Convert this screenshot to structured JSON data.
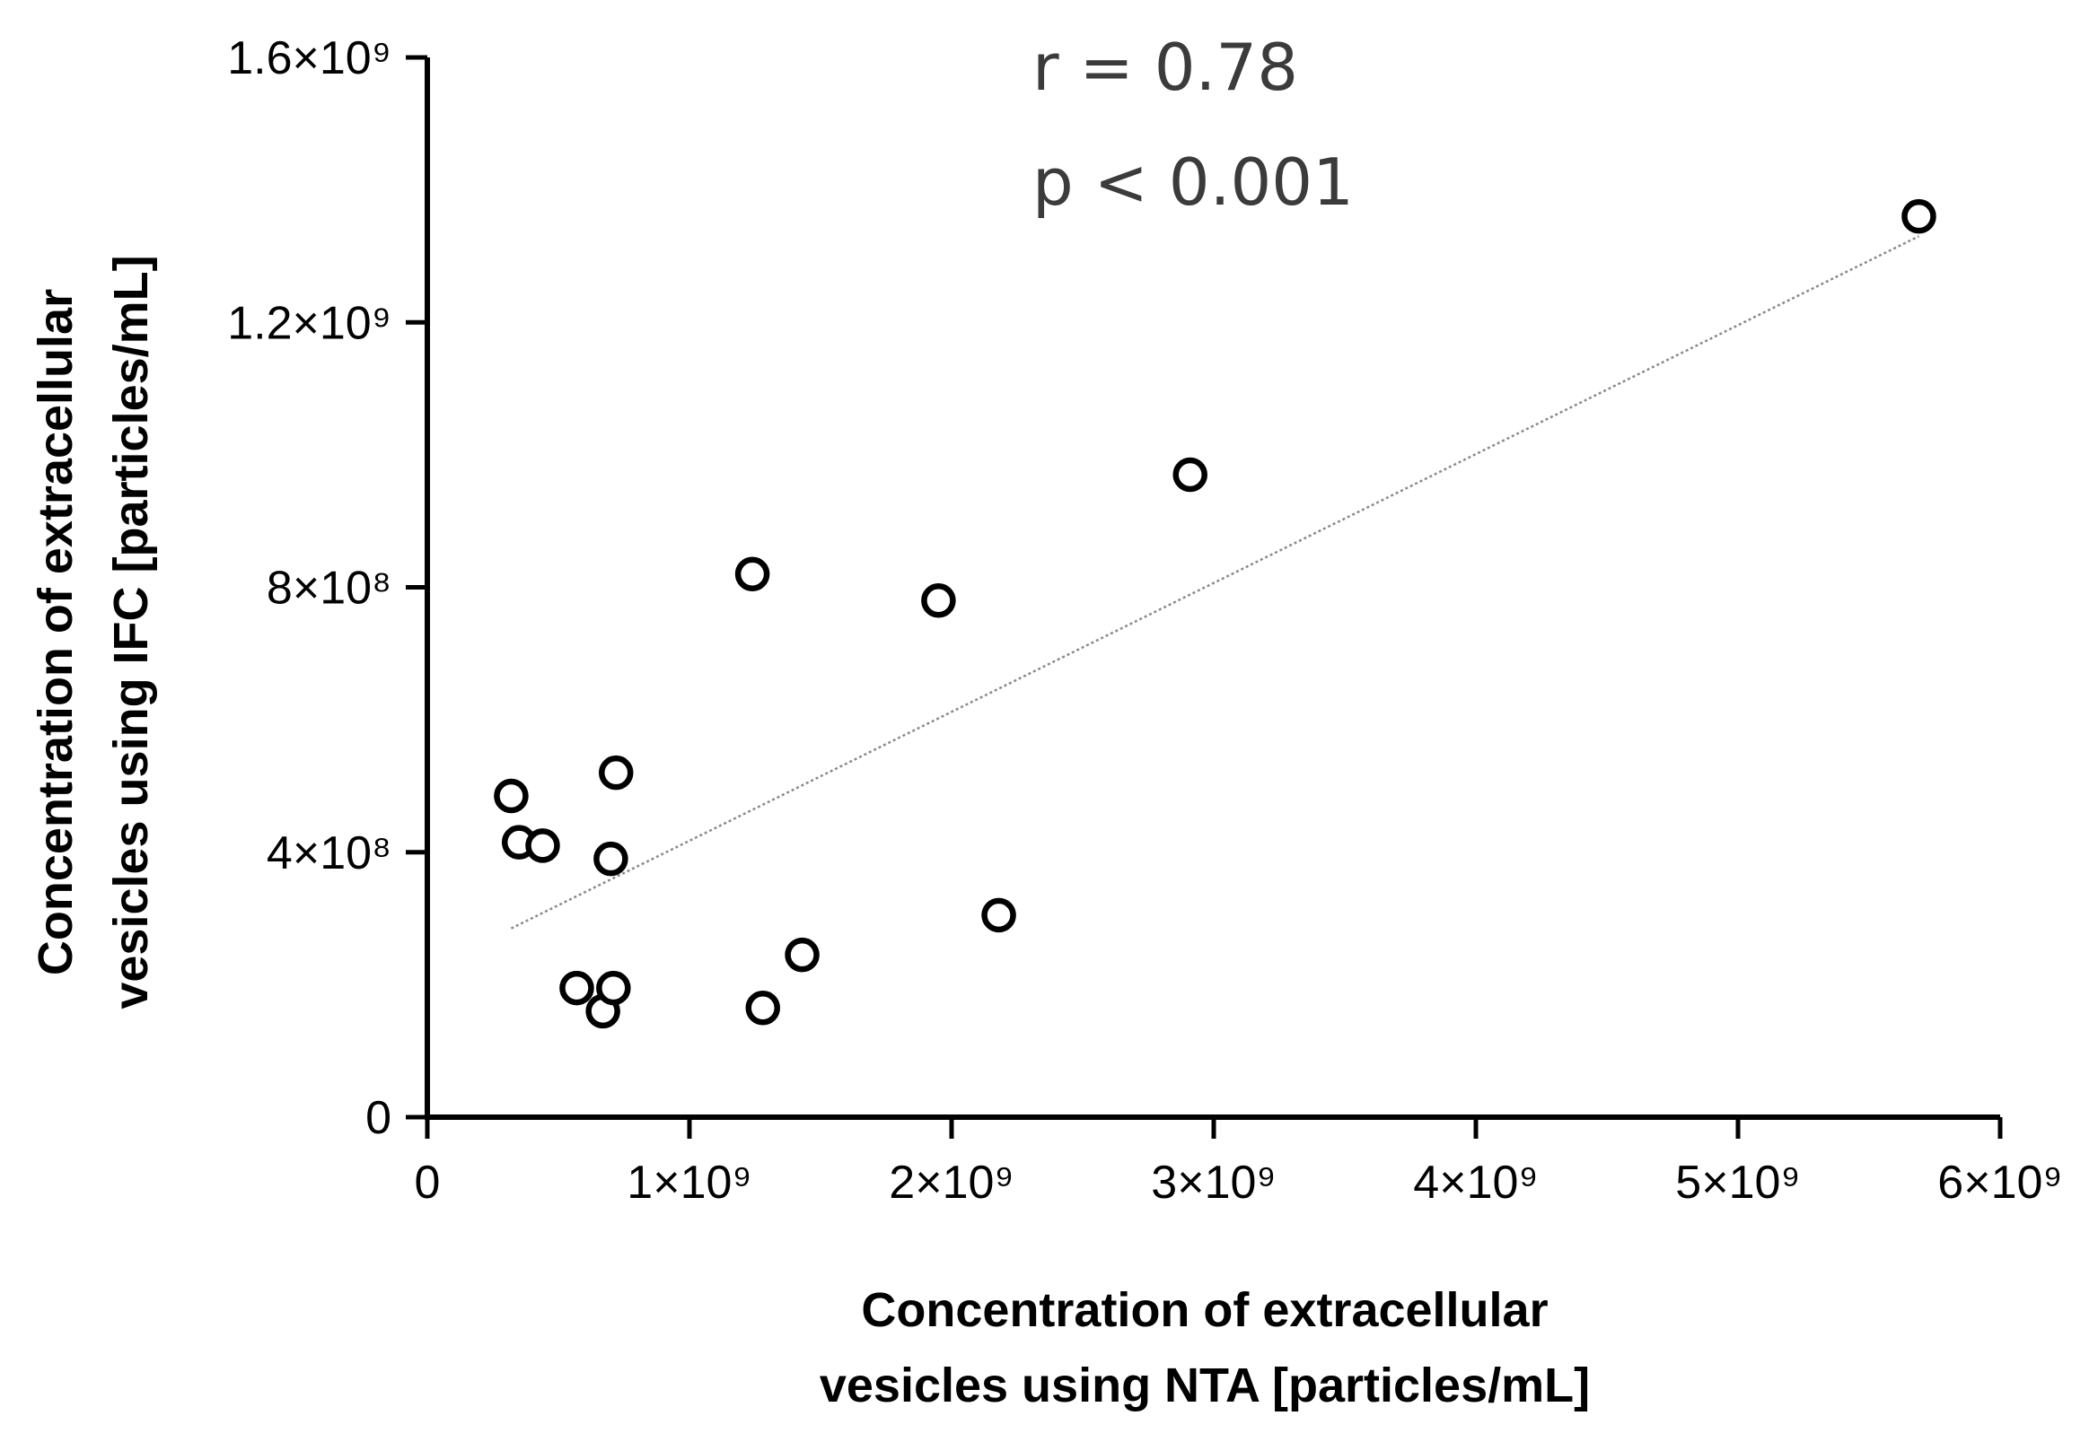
{
  "chart_data": {
    "type": "scatter",
    "title": "",
    "xlabel": "Concentration of extracellular vesicles using NTA [particles/mL]",
    "xlabel_lines": [
      "Concentration of extracellular",
      "vesicles using NTA [particles/mL]"
    ],
    "ylabel": "Concentration of extracellular vesicles using IFC [particles/mL]",
    "ylabel_lines": [
      "Concentration of extracellular",
      "vesicles using IFC [particles/mL]"
    ],
    "xlim": [
      0,
      6000000000
    ],
    "ylim": [
      0,
      1600000000
    ],
    "x_ticks": [
      {
        "value": 0,
        "label": "0"
      },
      {
        "value": 1000000000,
        "label": "1×10⁹"
      },
      {
        "value": 2000000000,
        "label": "2×10⁹"
      },
      {
        "value": 3000000000,
        "label": "3×10⁹"
      },
      {
        "value": 4000000000,
        "label": "4×10⁹"
      },
      {
        "value": 5000000000,
        "label": "5×10⁹"
      },
      {
        "value": 6000000000,
        "label": "6×10⁹"
      }
    ],
    "y_ticks": [
      {
        "value": 0,
        "label": "0"
      },
      {
        "value": 400000000,
        "label": "4×10⁸"
      },
      {
        "value": 800000000,
        "label": "8×10⁸"
      },
      {
        "value": 1200000000,
        "label": "1.2×10⁹"
      },
      {
        "value": 1600000000,
        "label": "1.6×10⁹"
      }
    ],
    "points": [
      {
        "x": 320000000,
        "y": 485000000
      },
      {
        "x": 350000000,
        "y": 415000000
      },
      {
        "x": 440000000,
        "y": 410000000
      },
      {
        "x": 570000000,
        "y": 195000000
      },
      {
        "x": 670000000,
        "y": 160000000
      },
      {
        "x": 710000000,
        "y": 195000000
      },
      {
        "x": 700000000,
        "y": 390000000
      },
      {
        "x": 720000000,
        "y": 520000000
      },
      {
        "x": 1240000000,
        "y": 820000000
      },
      {
        "x": 1280000000,
        "y": 165000000
      },
      {
        "x": 1430000000,
        "y": 245000000
      },
      {
        "x": 1950000000,
        "y": 780000000
      },
      {
        "x": 2180000000,
        "y": 305000000
      },
      {
        "x": 2910000000,
        "y": 970000000
      },
      {
        "x": 5690000000,
        "y": 1360000000
      }
    ],
    "trendline": {
      "x1": 320000000,
      "y1": 285000000,
      "x2": 5690000000,
      "y2": 1330000000
    },
    "annotations": [
      "r = 0.78",
      "p < 0.001"
    ],
    "grid": false,
    "legend": "none"
  },
  "colors": {
    "axis": "#000000",
    "marker_stroke": "#000000",
    "marker_fill": "#ffffff",
    "trendline": "#8a8a8a",
    "annotation": "#3b3b3b"
  }
}
